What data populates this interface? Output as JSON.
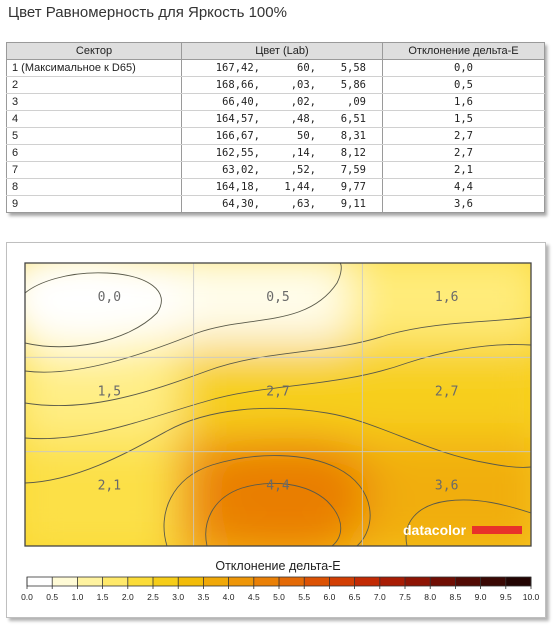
{
  "title": "Цвет Равномерность для Яркость 100%",
  "table": {
    "headers": [
      "Сектор",
      "Цвет (Lab)",
      "Отклонение дельта-E"
    ],
    "rows": [
      {
        "sector": "1 (Максимальное к D65)",
        "L": "167,42,",
        "a": "60,",
        "b": "5,58",
        "de": "0,0"
      },
      {
        "sector": "2",
        "L": "168,66,",
        "a": ",03,",
        "b": "5,86",
        "de": "0,5"
      },
      {
        "sector": "3",
        "L": "66,40,",
        "a": ",02,",
        "b": ",09",
        "de": "1,6"
      },
      {
        "sector": "4",
        "L": "164,57,",
        "a": ",48,",
        "b": "6,51",
        "de": "1,5"
      },
      {
        "sector": "5",
        "L": "166,67,",
        "a": "50,",
        "b": "8,31",
        "de": "2,7"
      },
      {
        "sector": "6",
        "L": "162,55,",
        "a": ",14,",
        "b": "8,12",
        "de": "2,7"
      },
      {
        "sector": "7",
        "L": "63,02,",
        "a": ",52,",
        "b": "7,59",
        "de": "2,1"
      },
      {
        "sector": "8",
        "L": "164,18,",
        "a": "1,44,",
        "b": "9,77",
        "de": "4,4"
      },
      {
        "sector": "9",
        "L": "64,30,",
        "a": ",63,",
        "b": "9,11",
        "de": "3,6"
      }
    ]
  },
  "chart_data": {
    "type": "heatmap",
    "grid": [
      [
        0.0,
        0.5,
        1.6
      ],
      [
        1.5,
        2.7,
        2.7
      ],
      [
        2.1,
        4.4,
        3.6
      ]
    ],
    "cell_labels": [
      [
        "0,0",
        "0,5",
        "1,6"
      ],
      [
        "1,5",
        "2,7",
        "2,7"
      ],
      [
        "2,1",
        "4,4",
        "3,6"
      ]
    ],
    "legend_title": "Отклонение дельта-E",
    "scale_ticks": [
      "0.0",
      "0.5",
      "1.0",
      "1.5",
      "2.0",
      "2.5",
      "3.0",
      "3.5",
      "4.0",
      "4.5",
      "5.0",
      "5.5",
      "6.0",
      "6.5",
      "7.0",
      "7.5",
      "8.0",
      "8.5",
      "9.0",
      "9.5",
      "10.0"
    ],
    "scale_range": [
      0,
      10
    ],
    "scale_colors": [
      "#ffffff",
      "#fffbd6",
      "#fff3a0",
      "#ffe96a",
      "#fbdc38",
      "#f6cd18",
      "#f2bc08",
      "#f0a808",
      "#ee9608",
      "#ea8006",
      "#e46a06",
      "#dc5204",
      "#d23e04",
      "#c22a04",
      "#a81c04",
      "#8e1404",
      "#700e04",
      "#520a04",
      "#3a0804",
      "#220402"
    ],
    "watermark": "datacolor",
    "brand_color": "#e8322a"
  }
}
